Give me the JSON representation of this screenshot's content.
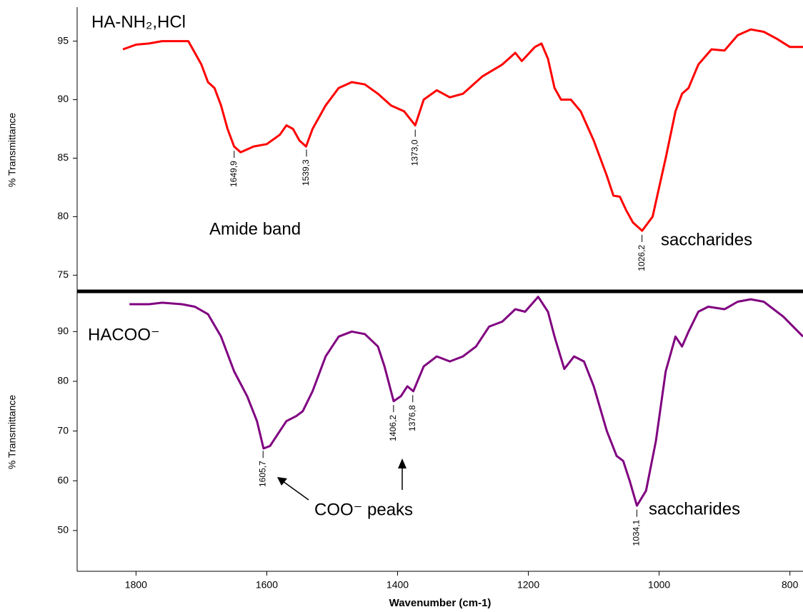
{
  "chart_data": [
    {
      "type": "line",
      "title": "HA-NH₂,HCl",
      "ylabel": "% Transmittance",
      "x": [
        1820,
        1800,
        1780,
        1760,
        1740,
        1720,
        1710,
        1700,
        1690,
        1680,
        1670,
        1660,
        1650,
        1640,
        1620,
        1600,
        1580,
        1570,
        1560,
        1550,
        1540,
        1530,
        1510,
        1490,
        1470,
        1450,
        1430,
        1410,
        1390,
        1373,
        1360,
        1340,
        1320,
        1300,
        1270,
        1240,
        1220,
        1210,
        1190,
        1180,
        1170,
        1160,
        1150,
        1135,
        1120,
        1100,
        1080,
        1070,
        1060,
        1050,
        1040,
        1026,
        1010,
        1000,
        990,
        975,
        965,
        955,
        940,
        920,
        900,
        880,
        860,
        840,
        820,
        800,
        780
      ],
      "series": [
        {
          "name": "HA-NH₂,HCl",
          "color": "#ff0000",
          "values": [
            94.3,
            94.7,
            94.8,
            95.0,
            95.0,
            95.0,
            94.0,
            93.0,
            91.5,
            91.0,
            89.5,
            87.5,
            86.0,
            85.5,
            86.0,
            86.2,
            87.0,
            87.8,
            87.5,
            86.5,
            86.0,
            87.5,
            89.5,
            91.0,
            91.5,
            91.3,
            90.5,
            89.5,
            89.0,
            87.8,
            90.0,
            90.8,
            90.2,
            90.5,
            92.0,
            93.0,
            94.0,
            93.3,
            94.5,
            94.8,
            93.5,
            91.0,
            90.0,
            90.0,
            89.0,
            86.5,
            83.5,
            81.8,
            81.7,
            80.5,
            79.5,
            78.8,
            80.0,
            82.5,
            85.0,
            89.0,
            90.5,
            91.0,
            93.0,
            94.3,
            94.2,
            95.5,
            96.0,
            95.8,
            95.2,
            94.5,
            94.5
          ]
        }
      ],
      "xlim": [
        1890,
        780
      ],
      "ylim": [
        73.8,
        97.6
      ],
      "yticks": [
        75,
        80,
        85,
        90,
        95
      ],
      "peaks": [
        {
          "label": "1649,9",
          "x": 1649.9
        },
        {
          "label": "1539,3",
          "x": 1539.3
        },
        {
          "label": "1373,0",
          "x": 1373.0
        },
        {
          "label": "1026,2",
          "x": 1026.2
        }
      ],
      "annotations": [
        "Amide band",
        "saccharides"
      ]
    },
    {
      "type": "line",
      "title": "HACOO⁻",
      "ylabel": "% Transmittance",
      "xlabel": "Wavenumber (cm-1)",
      "x": [
        1810,
        1780,
        1760,
        1730,
        1710,
        1690,
        1670,
        1650,
        1630,
        1615,
        1605,
        1595,
        1580,
        1570,
        1555,
        1545,
        1530,
        1510,
        1490,
        1470,
        1450,
        1430,
        1420,
        1406,
        1395,
        1385,
        1376,
        1360,
        1340,
        1320,
        1300,
        1280,
        1260,
        1240,
        1220,
        1205,
        1185,
        1170,
        1160,
        1145,
        1130,
        1115,
        1100,
        1080,
        1065,
        1055,
        1045,
        1034,
        1020,
        1005,
        990,
        975,
        965,
        955,
        940,
        925,
        900,
        880,
        860,
        840,
        810,
        780
      ],
      "series": [
        {
          "name": "HACOO⁻",
          "color": "#800080",
          "values": [
            95.5,
            95.5,
            95.8,
            95.5,
            95.0,
            93.5,
            89.0,
            82.0,
            77.0,
            72.0,
            66.5,
            67.0,
            70.0,
            72.0,
            73.0,
            74.0,
            78.0,
            85.0,
            89.0,
            90.0,
            89.5,
            87.0,
            83.0,
            76.0,
            77.0,
            79.0,
            78.0,
            83.0,
            85.0,
            84.0,
            85.0,
            87.0,
            91.0,
            92.0,
            94.5,
            94.0,
            97.0,
            94.0,
            89.0,
            82.5,
            85.0,
            84.0,
            79.0,
            70.0,
            65.0,
            64.0,
            60.0,
            55.0,
            58.0,
            68.0,
            82.0,
            89.0,
            87.0,
            90.0,
            94.0,
            95.0,
            94.5,
            96.0,
            96.5,
            96.0,
            93.0,
            89.0
          ]
        }
      ],
      "xlim": [
        1890,
        780
      ],
      "xticks": [
        1800,
        1600,
        1400,
        1200,
        1000,
        800
      ],
      "ylim": [
        41.8,
        97.8
      ],
      "yticks": [
        50,
        60,
        70,
        80,
        90
      ],
      "peaks": [
        {
          "label": "1605,7",
          "x": 1605.7
        },
        {
          "label": "1406,2",
          "x": 1406.2
        },
        {
          "label": "1376,8",
          "x": 1376.8
        },
        {
          "label": "1034,1",
          "x": 1034.1
        }
      ],
      "annotations": [
        "COO⁻ peaks",
        "saccharides"
      ]
    }
  ]
}
